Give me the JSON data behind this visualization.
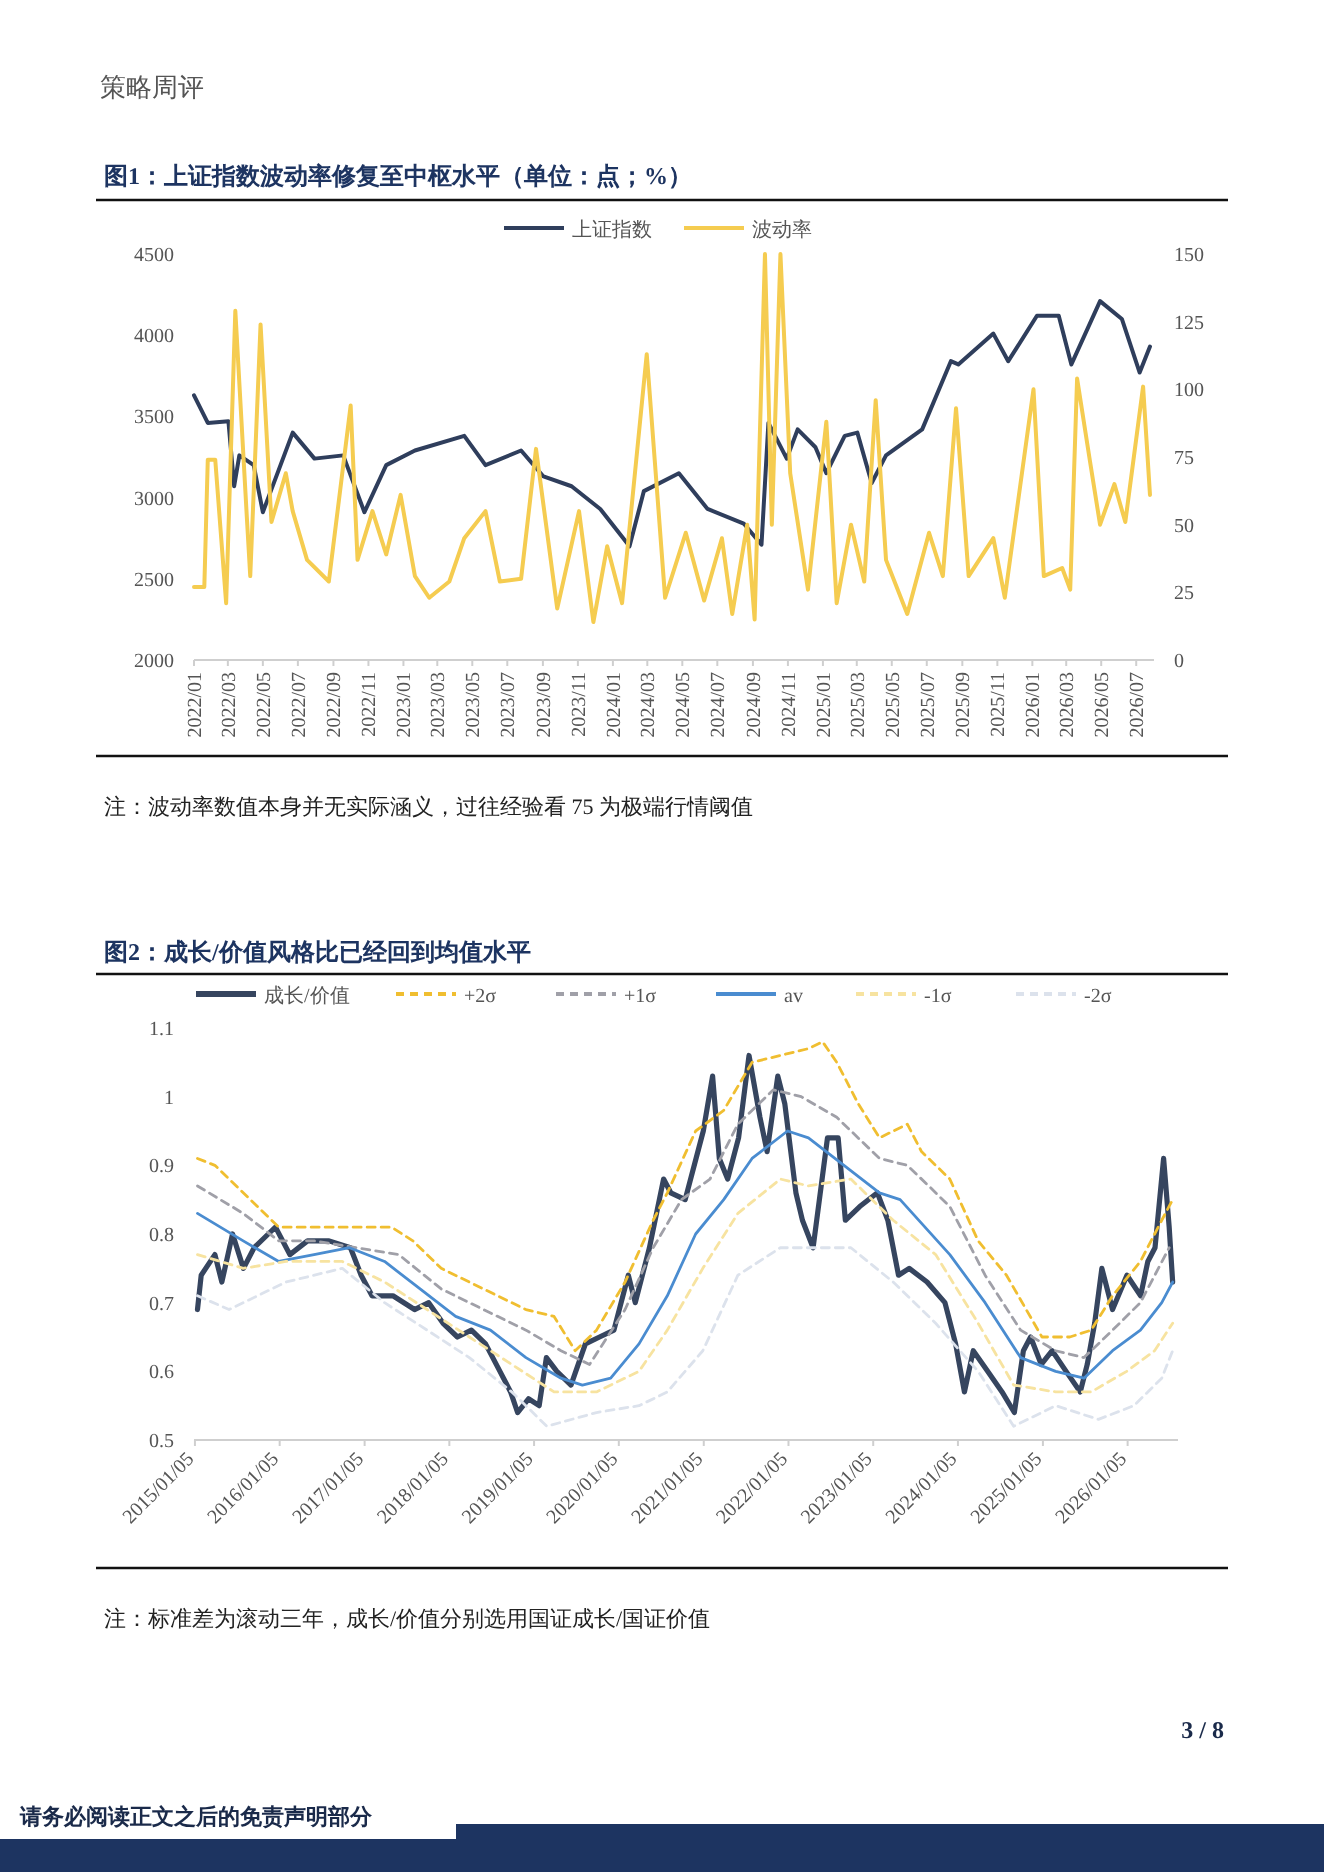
{
  "chart_data": [
    {
      "type": "line",
      "title": "图1：上证指数波动率修复至中枢水平（单位：点；%）",
      "xlim": [
        "2022-01-01",
        "2026-08-01"
      ],
      "xticks": [
        {
          "value": "2022-01",
          "label": "2022/01"
        },
        {
          "value": "2022-03",
          "label": "2022/03"
        },
        {
          "value": "2022-05",
          "label": "2022/05"
        },
        {
          "value": "2022-07",
          "label": "2022/07"
        },
        {
          "value": "2022-09",
          "label": "2022/09"
        },
        {
          "value": "2022-11",
          "label": "2022/11"
        },
        {
          "value": "2023-01",
          "label": "2023/01"
        },
        {
          "value": "2023-03",
          "label": "2023/03"
        },
        {
          "value": "2023-05",
          "label": "2023/05"
        },
        {
          "value": "2023-07",
          "label": "2023/07"
        },
        {
          "value": "2023-09",
          "label": "2023/09"
        },
        {
          "value": "2023-11",
          "label": "2023/11"
        },
        {
          "value": "2024-01",
          "label": "2024/01"
        },
        {
          "value": "2024-03",
          "label": "2024/03"
        },
        {
          "value": "2024-05",
          "label": "2024/05"
        },
        {
          "value": "2024-07",
          "label": "2024/07"
        },
        {
          "value": "2024-09",
          "label": "2024/09"
        },
        {
          "value": "2024-11",
          "label": "2024/11"
        },
        {
          "value": "2025-01",
          "label": "2025/01"
        },
        {
          "value": "2025-03",
          "label": "2025/03"
        },
        {
          "value": "2025-05",
          "label": "2025/05"
        },
        {
          "value": "2025-07",
          "label": "2025/07"
        },
        {
          "value": "2025-09",
          "label": "2025/09"
        },
        {
          "value": "2025-11",
          "label": "2025/11"
        },
        {
          "value": "2026-01",
          "label": "2026/01"
        },
        {
          "value": "2026-03",
          "label": "2026/03"
        },
        {
          "value": "2026-05",
          "label": "2026/05"
        },
        {
          "value": "2026-07",
          "label": "2026/07"
        }
      ],
      "ylim": [
        2000,
        4500
      ],
      "yticks": [
        2000,
        2500,
        3000,
        3500,
        4000,
        4500
      ],
      "y2lim": [
        0,
        150
      ],
      "y2ticks": [
        0,
        25,
        50,
        75,
        100,
        125,
        150
      ],
      "legend": "top",
      "series": [
        {
          "name": "上证指数",
          "color": "#2f3e5c",
          "x": [
            "2022-01-01",
            "2022-01-25",
            "2022-03-02",
            "2022-03-12",
            "2022-03-21",
            "2022-04-15",
            "2022-05-01",
            "2022-06-22",
            "2022-07-30",
            "2022-09-18",
            "2022-10-25",
            "2022-12-02",
            "2023-01-21",
            "2023-04-17",
            "2023-05-24",
            "2023-07-25",
            "2023-09-02",
            "2023-10-21",
            "2023-12-10",
            "2024-01-30",
            "2024-02-24",
            "2024-04-25",
            "2024-06-14",
            "2024-08-16",
            "2024-09-16",
            "2024-09-28",
            "2024-10-30",
            "2024-11-18",
            "2024-12-19",
            "2025-01-07",
            "2025-02-08",
            "2025-03-02",
            "2025-03-27",
            "2025-04-21",
            "2025-06-23",
            "2025-08-12",
            "2025-08-25",
            "2025-10-25",
            "2025-11-20",
            "2026-01-09",
            "2026-02-16",
            "2026-03-10",
            "2026-04-29",
            "2026-06-06",
            "2026-07-07",
            "2026-07-25"
          ],
          "values": [
            3630,
            3460,
            3470,
            3070,
            3260,
            3200,
            2910,
            3400,
            3240,
            3260,
            2910,
            3200,
            3290,
            3380,
            3200,
            3290,
            3130,
            3070,
            2930,
            2700,
            3040,
            3150,
            2930,
            2840,
            2710,
            3460,
            3240,
            3420,
            3310,
            3150,
            3380,
            3400,
            3090,
            3260,
            3420,
            3840,
            3820,
            4010,
            3840,
            4120,
            4120,
            3820,
            4210,
            4100,
            3770,
            3930
          ]
        },
        {
          "name": "波动率",
          "color": "#f5cc50",
          "axis": "y2",
          "x": [
            "2022-01-01",
            "2022-01-19",
            "2022-01-25",
            "2022-02-07",
            "2022-02-26",
            "2022-03-14",
            "2022-04-03",
            "2022-04-09",
            "2022-04-27",
            "2022-05-16",
            "2022-06-10",
            "2022-06-22",
            "2022-07-17",
            "2022-08-24",
            "2022-10-01",
            "2022-10-13",
            "2022-11-08",
            "2022-12-02",
            "2022-12-27",
            "2023-01-21",
            "2023-02-15",
            "2023-03-22",
            "2023-04-17",
            "2023-05-24",
            "2023-06-18",
            "2023-07-25",
            "2023-08-20",
            "2023-09-26",
            "2023-11-03",
            "2023-11-28",
            "2023-12-22",
            "2024-01-17",
            "2024-02-29",
            "2024-04-01",
            "2024-05-07",
            "2024-06-08",
            "2024-07-09",
            "2024-07-27",
            "2024-08-22",
            "2024-09-04",
            "2024-09-22",
            "2024-10-04",
            "2024-10-19",
            "2024-11-05",
            "2024-12-06",
            "2025-01-07",
            "2025-01-25",
            "2025-02-19",
            "2025-03-14",
            "2025-04-03",
            "2025-04-21",
            "2025-05-28",
            "2025-07-05",
            "2025-07-29",
            "2025-08-21",
            "2025-09-12",
            "2025-10-25",
            "2025-11-14",
            "2026-01-03",
            "2026-01-21",
            "2026-02-22",
            "2026-03-08",
            "2026-03-20",
            "2026-04-11",
            "2026-04-29",
            "2026-05-24",
            "2026-06-12",
            "2026-07-13",
            "2026-07-25"
          ],
          "values": [
            27,
            27,
            74,
            74,
            21,
            129,
            53,
            31,
            124,
            51,
            69,
            55,
            37,
            29,
            94,
            37,
            55,
            39,
            61,
            31,
            23,
            29,
            45,
            55,
            29,
            30,
            78,
            19,
            55,
            14,
            42,
            21,
            113,
            23,
            47,
            22,
            45,
            17,
            50,
            15,
            150,
            50,
            150,
            69,
            26,
            88,
            21,
            50,
            29,
            96,
            37,
            17,
            47,
            31,
            93,
            31,
            45,
            23,
            100,
            31,
            34,
            26,
            104,
            74,
            50,
            65,
            51,
            101,
            61
          ]
        }
      ],
      "annotations": [
        "策略周评",
        "注：波动率数值本身并无实际涵义，过往经验看 75 为极端行情阈值"
      ]
    },
    {
      "type": "line",
      "title": "图2：成长/价值风格比已经回到均值水平",
      "xlim": [
        "2015-01-01",
        "2026-08-10"
      ],
      "xticks": [
        {
          "value": "2015-01-05",
          "label": "2015/01/05"
        },
        {
          "value": "2016-01-05",
          "label": "2016/01/05"
        },
        {
          "value": "2017-01-05",
          "label": "2017/01/05"
        },
        {
          "value": "2018-01-05",
          "label": "2018/01/05"
        },
        {
          "value": "2019-01-05",
          "label": "2019/01/05"
        },
        {
          "value": "2020-01-05",
          "label": "2020/01/05"
        },
        {
          "value": "2021-01-05",
          "label": "2021/01/05"
        },
        {
          "value": "2022-01-05",
          "label": "2022/01/05"
        },
        {
          "value": "2023-01-05",
          "label": "2023/01/05"
        },
        {
          "value": "2024-01-05",
          "label": "2024/01/05"
        },
        {
          "value": "2025-01-05",
          "label": "2025/01/05"
        },
        {
          "value": "2026-01-05",
          "label": "2026/01/05"
        }
      ],
      "ylim": [
        0.5,
        1.1
      ],
      "yticks": [
        0.5,
        0.6,
        0.7,
        0.8,
        0.9,
        1,
        1.1
      ],
      "legend": "top",
      "series": [
        {
          "name": "成长/价值",
          "color": "#36455f",
          "line_style": "solid",
          "x": [
            "2015-01-16",
            "2015-02-01",
            "2015-04-01",
            "2015-05-01",
            "2015-06-16",
            "2015-08-02",
            "2015-09-17",
            "2015-11-17",
            "2015-12-18",
            "2016-02-18",
            "2016-05-04",
            "2016-08-05",
            "2016-11-05",
            "2016-12-21",
            "2017-02-06",
            "2017-05-07",
            "2017-08-08",
            "2017-10-08",
            "2017-12-09",
            "2018-02-09",
            "2018-04-10",
            "2018-06-10",
            "2018-08-11",
            "2018-09-26",
            "2018-10-26",
            "2018-12-12",
            "2019-01-27",
            "2019-02-27",
            "2019-04-13",
            "2019-06-13",
            "2019-08-14",
            "2019-10-14",
            "2019-12-15",
            "2020-02-15",
            "2020-03-16",
            "2020-05-16",
            "2020-07-16",
            "2020-08-16",
            "2020-10-17",
            "2021-01-03",
            "2021-02-12",
            "2021-03-13",
            "2021-04-18",
            "2021-06-04",
            "2021-07-19",
            "2021-09-04",
            "2021-10-05",
            "2021-11-20",
            "2021-12-20",
            "2022-02-06",
            "2022-03-06",
            "2022-04-21",
            "2022-06-22",
            "2022-08-07",
            "2022-09-07",
            "2022-11-08",
            "2023-01-23",
            "2023-03-09",
            "2023-04-24",
            "2023-06-09",
            "2023-08-25",
            "2023-11-10",
            "2023-12-26",
            "2024-02-02",
            "2024-03-11",
            "2024-05-12",
            "2024-07-13",
            "2024-09-04",
            "2024-10-13",
            "2024-11-13",
            "2024-12-29",
            "2025-02-14",
            "2025-04-15",
            "2025-06-15",
            "2025-07-15",
            "2025-08-16",
            "2025-09-16",
            "2025-11-01",
            "2026-01-02",
            "2026-03-02",
            "2026-04-02",
            "2026-05-03",
            "2026-06-09",
            "2026-07-03",
            "2026-07-18"
          ],
          "values": [
            0.69,
            0.74,
            0.77,
            0.73,
            0.8,
            0.75,
            0.78,
            0.8,
            0.81,
            0.77,
            0.79,
            0.79,
            0.78,
            0.74,
            0.71,
            0.71,
            0.69,
            0.7,
            0.67,
            0.65,
            0.66,
            0.64,
            0.6,
            0.57,
            0.54,
            0.56,
            0.55,
            0.62,
            0.6,
            0.58,
            0.64,
            0.65,
            0.66,
            0.74,
            0.7,
            0.78,
            0.88,
            0.86,
            0.85,
            0.95,
            1.03,
            0.91,
            0.88,
            0.94,
            1.06,
            0.97,
            0.92,
            1.03,
            0.99,
            0.86,
            0.82,
            0.78,
            0.94,
            0.94,
            0.82,
            0.84,
            0.86,
            0.82,
            0.74,
            0.75,
            0.73,
            0.7,
            0.64,
            0.57,
            0.63,
            0.6,
            0.57,
            0.54,
            0.63,
            0.65,
            0.61,
            0.63,
            0.6,
            0.57,
            0.61,
            0.67,
            0.75,
            0.69,
            0.74,
            0.71,
            0.76,
            0.78,
            0.91,
            0.81,
            0.73
          ]
        },
        {
          "name": "+2σ",
          "color": "#f0be30",
          "line_style": "dashed",
          "x": [
            "2015-01-16",
            "2015-04",
            "2016-01",
            "2016-06",
            "2016-12",
            "2017-05",
            "2017-08",
            "2017-12",
            "2018-04",
            "2018-08",
            "2018-12",
            "2019-04",
            "2019-07",
            "2019-10",
            "2020-02",
            "2020-06",
            "2020-08",
            "2020-12",
            "2021-04",
            "2021-08",
            "2021-12",
            "2022-04",
            "2022-06",
            "2022-08",
            "2022-11",
            "2023-02",
            "2023-06",
            "2023-08",
            "2023-12",
            "2024-04",
            "2024-08",
            "2025-01",
            "2025-05",
            "2025-08",
            "2025-11",
            "2026-03",
            "2026-06",
            "2026-07-18"
          ],
          "values": [
            0.91,
            0.9,
            0.81,
            0.81,
            0.81,
            0.81,
            0.79,
            0.75,
            0.73,
            0.71,
            0.69,
            0.68,
            0.63,
            0.66,
            0.73,
            0.82,
            0.86,
            0.95,
            0.98,
            1.05,
            1.06,
            1.07,
            1.08,
            1.05,
            0.99,
            0.94,
            0.96,
            0.92,
            0.88,
            0.79,
            0.74,
            0.65,
            0.65,
            0.66,
            0.71,
            0.76,
            0.82,
            0.85
          ]
        },
        {
          "name": "+1σ",
          "color": "#a0a0a8",
          "line_style": "dashed",
          "x": [
            "2015-01-16",
            "2015-08",
            "2016-01",
            "2016-06",
            "2016-12",
            "2017-06",
            "2017-12",
            "2018-06",
            "2018-12",
            "2019-05",
            "2019-09",
            "2020-02",
            "2020-06",
            "2020-10",
            "2021-02",
            "2021-06",
            "2021-11",
            "2022-03",
            "2022-08",
            "2023-02",
            "2023-06",
            "2023-09",
            "2023-12",
            "2024-05",
            "2024-10",
            "2025-03",
            "2025-07",
            "2025-11",
            "2026-03",
            "2026-07-03"
          ],
          "values": [
            0.87,
            0.83,
            0.79,
            0.79,
            0.78,
            0.77,
            0.72,
            0.69,
            0.66,
            0.63,
            0.61,
            0.69,
            0.78,
            0.85,
            0.88,
            0.96,
            1.01,
            1.0,
            0.97,
            0.91,
            0.9,
            0.87,
            0.84,
            0.74,
            0.66,
            0.63,
            0.62,
            0.66,
            0.7,
            0.78
          ]
        },
        {
          "name": "av",
          "color": "#4a8cd0",
          "line_style": "solid",
          "x": [
            "2015-01-16",
            "2015-08",
            "2016-01",
            "2016-06",
            "2016-11",
            "2017-04",
            "2017-09",
            "2018-02",
            "2018-07",
            "2018-12",
            "2019-05",
            "2019-08",
            "2019-12",
            "2020-04",
            "2020-08",
            "2020-12",
            "2021-04",
            "2021-08",
            "2022-01",
            "2022-04",
            "2022-09",
            "2023-02",
            "2023-05",
            "2023-12",
            "2024-05",
            "2024-10",
            "2025-03",
            "2025-07",
            "2025-11",
            "2026-03",
            "2026-06",
            "2026-07-18"
          ],
          "values": [
            0.83,
            0.79,
            0.76,
            0.77,
            0.78,
            0.76,
            0.72,
            0.68,
            0.66,
            0.62,
            0.59,
            0.58,
            0.59,
            0.64,
            0.71,
            0.8,
            0.85,
            0.91,
            0.95,
            0.94,
            0.9,
            0.86,
            0.85,
            0.77,
            0.7,
            0.62,
            0.6,
            0.59,
            0.63,
            0.66,
            0.7,
            0.73
          ]
        },
        {
          "name": "-1σ",
          "color": "#f7e3a0",
          "line_style": "dashed",
          "x": [
            "2015-01-16",
            "2015-08",
            "2016-02",
            "2016-10",
            "2017-04",
            "2017-10",
            "2018-04",
            "2018-10",
            "2019-04",
            "2019-10",
            "2020-04",
            "2020-08",
            "2021-01",
            "2021-06",
            "2021-12",
            "2022-04",
            "2022-10",
            "2023-04",
            "2023-10",
            "2024-04",
            "2024-09",
            "2025-03",
            "2025-08",
            "2026-01",
            "2026-05",
            "2026-07-18"
          ],
          "values": [
            0.77,
            0.75,
            0.76,
            0.76,
            0.73,
            0.69,
            0.65,
            0.61,
            0.57,
            0.57,
            0.6,
            0.66,
            0.75,
            0.83,
            0.88,
            0.87,
            0.88,
            0.82,
            0.77,
            0.67,
            0.58,
            0.57,
            0.57,
            0.6,
            0.63,
            0.67
          ]
        },
        {
          "name": "-2σ",
          "color": "#dce2ec",
          "line_style": "dashed",
          "x": [
            "2015-01-16",
            "2015-06",
            "2016-02",
            "2016-10",
            "2017-04",
            "2017-10",
            "2018-04",
            "2018-10",
            "2019-03",
            "2019-10",
            "2020-04",
            "2020-08",
            "2021-01",
            "2021-06",
            "2021-12",
            "2022-04",
            "2022-10",
            "2023-04",
            "2023-10",
            "2024-04",
            "2024-09",
            "2025-03",
            "2025-09",
            "2026-02",
            "2026-06",
            "2026-07-18"
          ],
          "values": [
            0.71,
            0.69,
            0.73,
            0.75,
            0.7,
            0.66,
            0.62,
            0.57,
            0.52,
            0.54,
            0.55,
            0.57,
            0.63,
            0.74,
            0.78,
            0.78,
            0.78,
            0.73,
            0.67,
            0.6,
            0.52,
            0.55,
            0.53,
            0.55,
            0.59,
            0.63
          ]
        }
      ],
      "annotations": [
        "注：标准差为滚动三年，成长/价值分别选用国证成长/国证价值",
        "3 / 8",
        "请务必阅读正文之后的免责声明部分"
      ]
    }
  ]
}
